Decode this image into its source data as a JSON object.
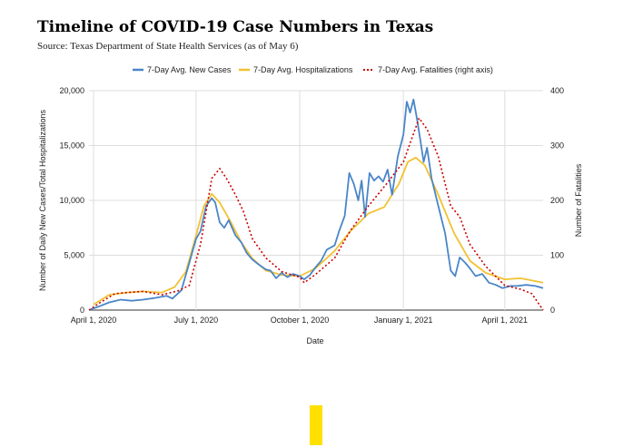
{
  "header": {
    "title": "Timeline of COVID-19 Case Numbers in Texas",
    "source": "Source: Texas Department of State Health Services (as of May 6)"
  },
  "colors": {
    "new_cases": "#4a86c8",
    "hospitalizations": "#f1c232",
    "fatalities": "#cc0000",
    "grid": "#dddddd",
    "yellow_block": "#ffe000"
  },
  "chart_data": {
    "type": "line",
    "xlabel": "Date",
    "ylabel": "Number of Daily New Cases/Total Hospitalizations",
    "y2label": "Number of Fatalities",
    "ylim": [
      0,
      20000
    ],
    "y2lim": [
      0,
      400
    ],
    "xlim": [
      "2020-03-28",
      "2021-05-05"
    ],
    "yticks": [
      "0",
      "5,000",
      "10,000",
      "15,000",
      "20,000"
    ],
    "y2ticks": [
      "0",
      "100",
      "200",
      "300",
      "400"
    ],
    "xticks": [
      "April 1, 2020",
      "July 1, 2020",
      "October 1, 2020",
      "January 1, 2021",
      "April 1, 2021"
    ],
    "xtick_dates": [
      "2020-04-01",
      "2020-07-01",
      "2020-10-01",
      "2021-01-01",
      "2021-04-01"
    ],
    "grid": true,
    "legend_position": "top-center",
    "series": [
      {
        "name": "7-Day Avg. New Cases",
        "axis": "left",
        "style": "solid",
        "points": [
          [
            "2020-03-28",
            0
          ],
          [
            "2020-04-05",
            300
          ],
          [
            "2020-04-15",
            700
          ],
          [
            "2020-04-25",
            950
          ],
          [
            "2020-05-05",
            850
          ],
          [
            "2020-05-15",
            950
          ],
          [
            "2020-05-25",
            1100
          ],
          [
            "2020-06-05",
            1300
          ],
          [
            "2020-06-10",
            1050
          ],
          [
            "2020-06-18",
            1800
          ],
          [
            "2020-06-25",
            4300
          ],
          [
            "2020-07-01",
            6500
          ],
          [
            "2020-07-05",
            7200
          ],
          [
            "2020-07-10",
            9500
          ],
          [
            "2020-07-15",
            10200
          ],
          [
            "2020-07-18",
            9800
          ],
          [
            "2020-07-22",
            8000
          ],
          [
            "2020-07-26",
            7500
          ],
          [
            "2020-07-30",
            8200
          ],
          [
            "2020-08-05",
            6800
          ],
          [
            "2020-08-10",
            6200
          ],
          [
            "2020-08-15",
            5200
          ],
          [
            "2020-08-20",
            4600
          ],
          [
            "2020-08-25",
            4200
          ],
          [
            "2020-09-01",
            3700
          ],
          [
            "2020-09-05",
            3600
          ],
          [
            "2020-09-10",
            2900
          ],
          [
            "2020-09-15",
            3400
          ],
          [
            "2020-09-20",
            3000
          ],
          [
            "2020-09-25",
            3300
          ],
          [
            "2020-10-01",
            3100
          ],
          [
            "2020-10-05",
            2800
          ],
          [
            "2020-10-10",
            3200
          ],
          [
            "2020-10-15",
            3900
          ],
          [
            "2020-10-20",
            4500
          ],
          [
            "2020-10-25",
            5500
          ],
          [
            "2020-11-01",
            5900
          ],
          [
            "2020-11-05",
            7200
          ],
          [
            "2020-11-10",
            8600
          ],
          [
            "2020-11-14",
            12500
          ],
          [
            "2020-11-18",
            11500
          ],
          [
            "2020-11-22",
            10000
          ],
          [
            "2020-11-25",
            11800
          ],
          [
            "2020-11-28",
            8500
          ],
          [
            "2020-12-02",
            12500
          ],
          [
            "2020-12-06",
            11800
          ],
          [
            "2020-12-10",
            12200
          ],
          [
            "2020-12-14",
            11700
          ],
          [
            "2020-12-18",
            12800
          ],
          [
            "2020-12-22",
            10500
          ],
          [
            "2020-12-27",
            14000
          ],
          [
            "2021-01-01",
            16000
          ],
          [
            "2021-01-04",
            19000
          ],
          [
            "2021-01-07",
            18000
          ],
          [
            "2021-01-10",
            19200
          ],
          [
            "2021-01-13",
            17500
          ],
          [
            "2021-01-16",
            15500
          ],
          [
            "2021-01-19",
            13500
          ],
          [
            "2021-01-22",
            14800
          ],
          [
            "2021-01-26",
            12000
          ],
          [
            "2021-02-01",
            9500
          ],
          [
            "2021-02-07",
            7000
          ],
          [
            "2021-02-12",
            3600
          ],
          [
            "2021-02-16",
            3100
          ],
          [
            "2021-02-20",
            4800
          ],
          [
            "2021-02-25",
            4300
          ],
          [
            "2021-03-01",
            3800
          ],
          [
            "2021-03-06",
            3100
          ],
          [
            "2021-03-12",
            3300
          ],
          [
            "2021-03-18",
            2500
          ],
          [
            "2021-03-24",
            2300
          ],
          [
            "2021-03-30",
            2000
          ],
          [
            "2021-04-06",
            2200
          ],
          [
            "2021-04-12",
            2200
          ],
          [
            "2021-04-20",
            2300
          ],
          [
            "2021-04-28",
            2200
          ],
          [
            "2021-05-05",
            2000
          ]
        ]
      },
      {
        "name": "7-Day Avg. Hospitalizations",
        "axis": "left",
        "style": "solid",
        "points": [
          [
            "2020-04-01",
            500
          ],
          [
            "2020-04-15",
            1400
          ],
          [
            "2020-05-01",
            1600
          ],
          [
            "2020-05-15",
            1700
          ],
          [
            "2020-06-01",
            1600
          ],
          [
            "2020-06-12",
            2100
          ],
          [
            "2020-06-22",
            3500
          ],
          [
            "2020-07-01",
            6800
          ],
          [
            "2020-07-08",
            9500
          ],
          [
            "2020-07-15",
            10600
          ],
          [
            "2020-07-22",
            9800
          ],
          [
            "2020-08-01",
            8000
          ],
          [
            "2020-08-10",
            6200
          ],
          [
            "2020-08-20",
            4700
          ],
          [
            "2020-09-01",
            3600
          ],
          [
            "2020-09-15",
            3200
          ],
          [
            "2020-10-01",
            3100
          ],
          [
            "2020-10-15",
            3800
          ],
          [
            "2020-11-01",
            5400
          ],
          [
            "2020-11-15",
            7200
          ],
          [
            "2020-12-01",
            8800
          ],
          [
            "2020-12-15",
            9400
          ],
          [
            "2020-12-28",
            11500
          ],
          [
            "2021-01-05",
            13500
          ],
          [
            "2021-01-12",
            13900
          ],
          [
            "2021-01-20",
            13200
          ],
          [
            "2021-02-01",
            10500
          ],
          [
            "2021-02-15",
            7000
          ],
          [
            "2021-03-01",
            4500
          ],
          [
            "2021-03-15",
            3400
          ],
          [
            "2021-04-01",
            2800
          ],
          [
            "2021-04-15",
            2900
          ],
          [
            "2021-05-05",
            2500
          ]
        ]
      },
      {
        "name": "7-Day Avg. Fatalities (right axis)",
        "axis": "right",
        "style": "dotted",
        "points": [
          [
            "2020-03-28",
            0
          ],
          [
            "2020-04-08",
            15
          ],
          [
            "2020-04-20",
            30
          ],
          [
            "2020-05-01",
            32
          ],
          [
            "2020-05-15",
            34
          ],
          [
            "2020-06-01",
            28
          ],
          [
            "2020-06-15",
            35
          ],
          [
            "2020-06-25",
            45
          ],
          [
            "2020-07-05",
            120
          ],
          [
            "2020-07-15",
            240
          ],
          [
            "2020-07-22",
            258
          ],
          [
            "2020-07-28",
            240
          ],
          [
            "2020-08-05",
            210
          ],
          [
            "2020-08-12",
            180
          ],
          [
            "2020-08-20",
            130
          ],
          [
            "2020-09-01",
            95
          ],
          [
            "2020-09-15",
            70
          ],
          [
            "2020-10-01",
            60
          ],
          [
            "2020-10-05",
            50
          ],
          [
            "2020-10-15",
            65
          ],
          [
            "2020-11-01",
            95
          ],
          [
            "2020-11-15",
            145
          ],
          [
            "2020-12-01",
            190
          ],
          [
            "2020-12-15",
            225
          ],
          [
            "2021-01-01",
            270
          ],
          [
            "2021-01-08",
            310
          ],
          [
            "2021-01-15",
            350
          ],
          [
            "2021-01-22",
            330
          ],
          [
            "2021-02-01",
            280
          ],
          [
            "2021-02-12",
            190
          ],
          [
            "2021-02-20",
            170
          ],
          [
            "2021-03-01",
            120
          ],
          [
            "2021-03-15",
            80
          ],
          [
            "2021-04-01",
            45
          ],
          [
            "2021-04-15",
            38
          ],
          [
            "2021-04-25",
            30
          ],
          [
            "2021-05-05",
            0
          ]
        ]
      }
    ]
  }
}
